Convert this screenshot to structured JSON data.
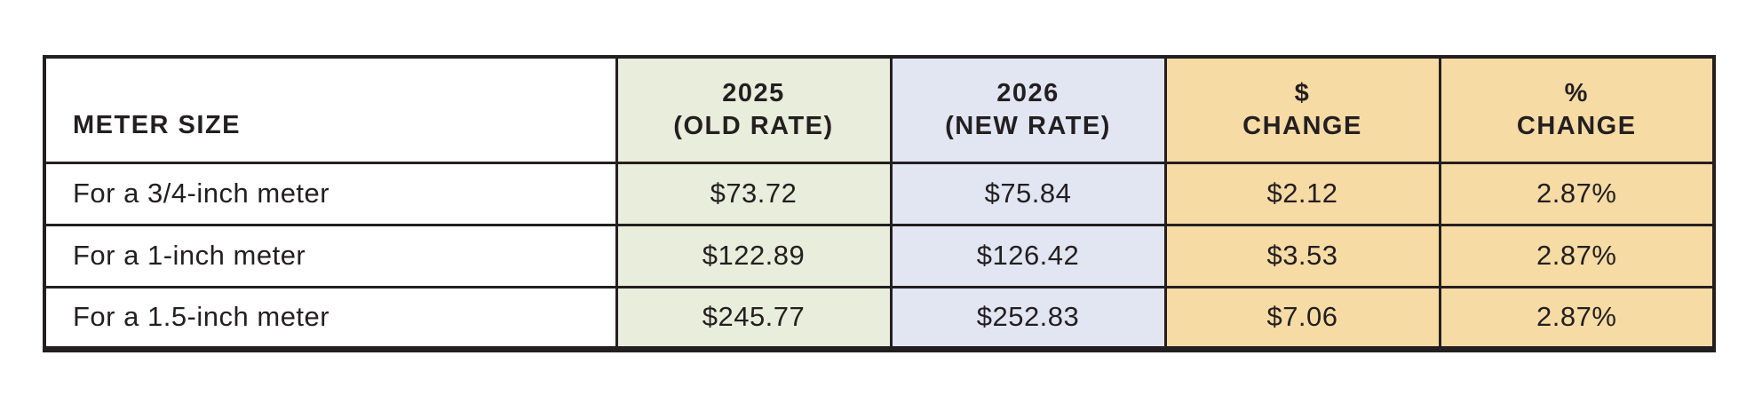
{
  "table": {
    "colors": {
      "border": "#231f20",
      "text": "#231f20",
      "old_rate_bg": "#e9eddb",
      "new_rate_bg": "#e2e6f3",
      "change_bg": "#f7dba5",
      "meter_bg": "#ffffff"
    },
    "columns": {
      "meter_size": {
        "label": "METER SIZE"
      },
      "old_rate": {
        "line1": "2025",
        "line2": "(OLD RATE)"
      },
      "new_rate": {
        "line1": "2026",
        "line2": "(NEW RATE)"
      },
      "dollar_change": {
        "line1": "$",
        "line2": "CHANGE"
      },
      "percent_change": {
        "line1": "%",
        "line2": "CHANGE"
      }
    },
    "rows": [
      {
        "meter_size": "For a 3/4-inch meter",
        "old_rate": "$73.72",
        "new_rate": "$75.84",
        "dollar_change": "$2.12",
        "percent_change": "2.87%"
      },
      {
        "meter_size": "For a 1-inch meter",
        "old_rate": "$122.89",
        "new_rate": "$126.42",
        "dollar_change": "$3.53",
        "percent_change": "2.87%"
      },
      {
        "meter_size": "For a 1.5-inch meter",
        "old_rate": "$245.77",
        "new_rate": "$252.83",
        "dollar_change": "$7.06",
        "percent_change": "2.87%"
      }
    ]
  }
}
